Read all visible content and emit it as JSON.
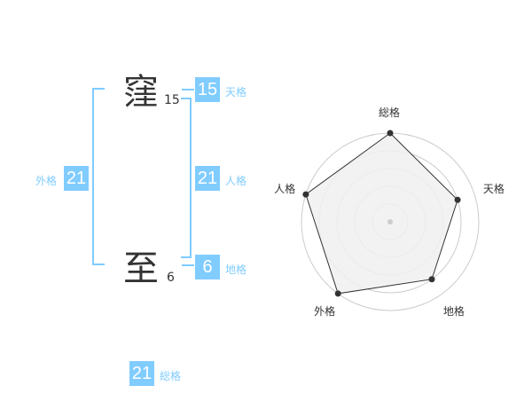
{
  "name": {
    "chars": [
      {
        "char": "窪",
        "strokes": "15"
      },
      {
        "char": "至",
        "strokes": "6"
      }
    ]
  },
  "fortunes": {
    "tenkaku": {
      "label": "天格",
      "value": "15"
    },
    "jinkaku": {
      "label": "人格",
      "value": "21"
    },
    "chikaku": {
      "label": "地格",
      "value": "6"
    },
    "gaikaku": {
      "label": "外格",
      "value": "21"
    },
    "soukaku": {
      "label": "総格",
      "value": "21"
    }
  },
  "colors": {
    "accent": "#80ccff",
    "text": "#333333",
    "radar_fill": "#f0f0f0",
    "ring": "#cccccc"
  },
  "chart_data": {
    "type": "radar",
    "axes": [
      "総格",
      "天格",
      "地格",
      "外格",
      "人格"
    ],
    "values": [
      5,
      4,
      4,
      5,
      5
    ],
    "range": [
      0,
      5
    ],
    "rings": 5
  }
}
